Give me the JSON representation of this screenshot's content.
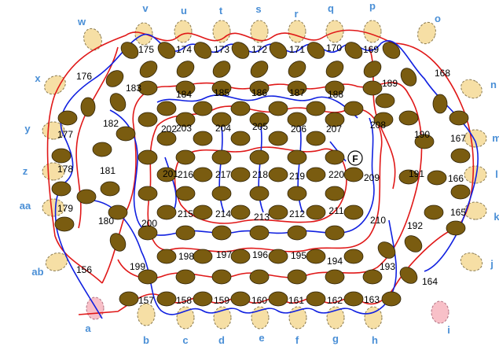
{
  "colors": {
    "pin_fill": "#f6dfa5",
    "pin_stroke": "#8a7a50",
    "pink_pin": "#f8c0c8",
    "bead_fill": "#7a5c10",
    "bead_stroke": "#2e2208",
    "red_thread": "#e01818",
    "blue_thread": "#1020e0",
    "label_blue": "#4a8fd6"
  },
  "pin_labels": {
    "top": [
      "w",
      "v",
      "u",
      "t",
      "s",
      "r",
      "q",
      "p",
      "o"
    ],
    "left": [
      "x",
      "y",
      "z",
      "aa",
      "ab"
    ],
    "right": [
      "n",
      "m",
      "l",
      "k",
      "j"
    ],
    "bottom": [
      "a",
      "b",
      "c",
      "d",
      "e",
      "f",
      "g",
      "h",
      "i"
    ]
  },
  "numbers": {
    "row_top": [
      "175",
      "174",
      "173",
      "172",
      "171",
      "170",
      "169"
    ],
    "ring_left": [
      "176",
      "177",
      "178",
      "179",
      "156"
    ],
    "ring_right": [
      "168",
      "167",
      "166",
      "165",
      "164"
    ],
    "row_bottom": [
      "157",
      "158",
      "159",
      "160",
      "161",
      "162",
      "163"
    ],
    "inner_top": [
      "183",
      "184",
      "185",
      "186",
      "187",
      "188",
      "189"
    ],
    "inner_left": [
      "182",
      "181",
      "180"
    ],
    "inner_right": [
      "190",
      "191",
      "192"
    ],
    "inner_bottom": [
      "199",
      "198",
      "197",
      "196",
      "195",
      "194",
      "193"
    ],
    "mid_top": [
      "202",
      "203",
      "204",
      "205",
      "206",
      "207",
      "208"
    ],
    "mid_left": [
      "201",
      "200"
    ],
    "mid_right": [
      "209",
      "210"
    ],
    "mid_bottom": [
      "215",
      "214",
      "213",
      "212",
      "211"
    ],
    "center": [
      "216",
      "217",
      "218",
      "219",
      "220"
    ]
  },
  "marker": "F"
}
